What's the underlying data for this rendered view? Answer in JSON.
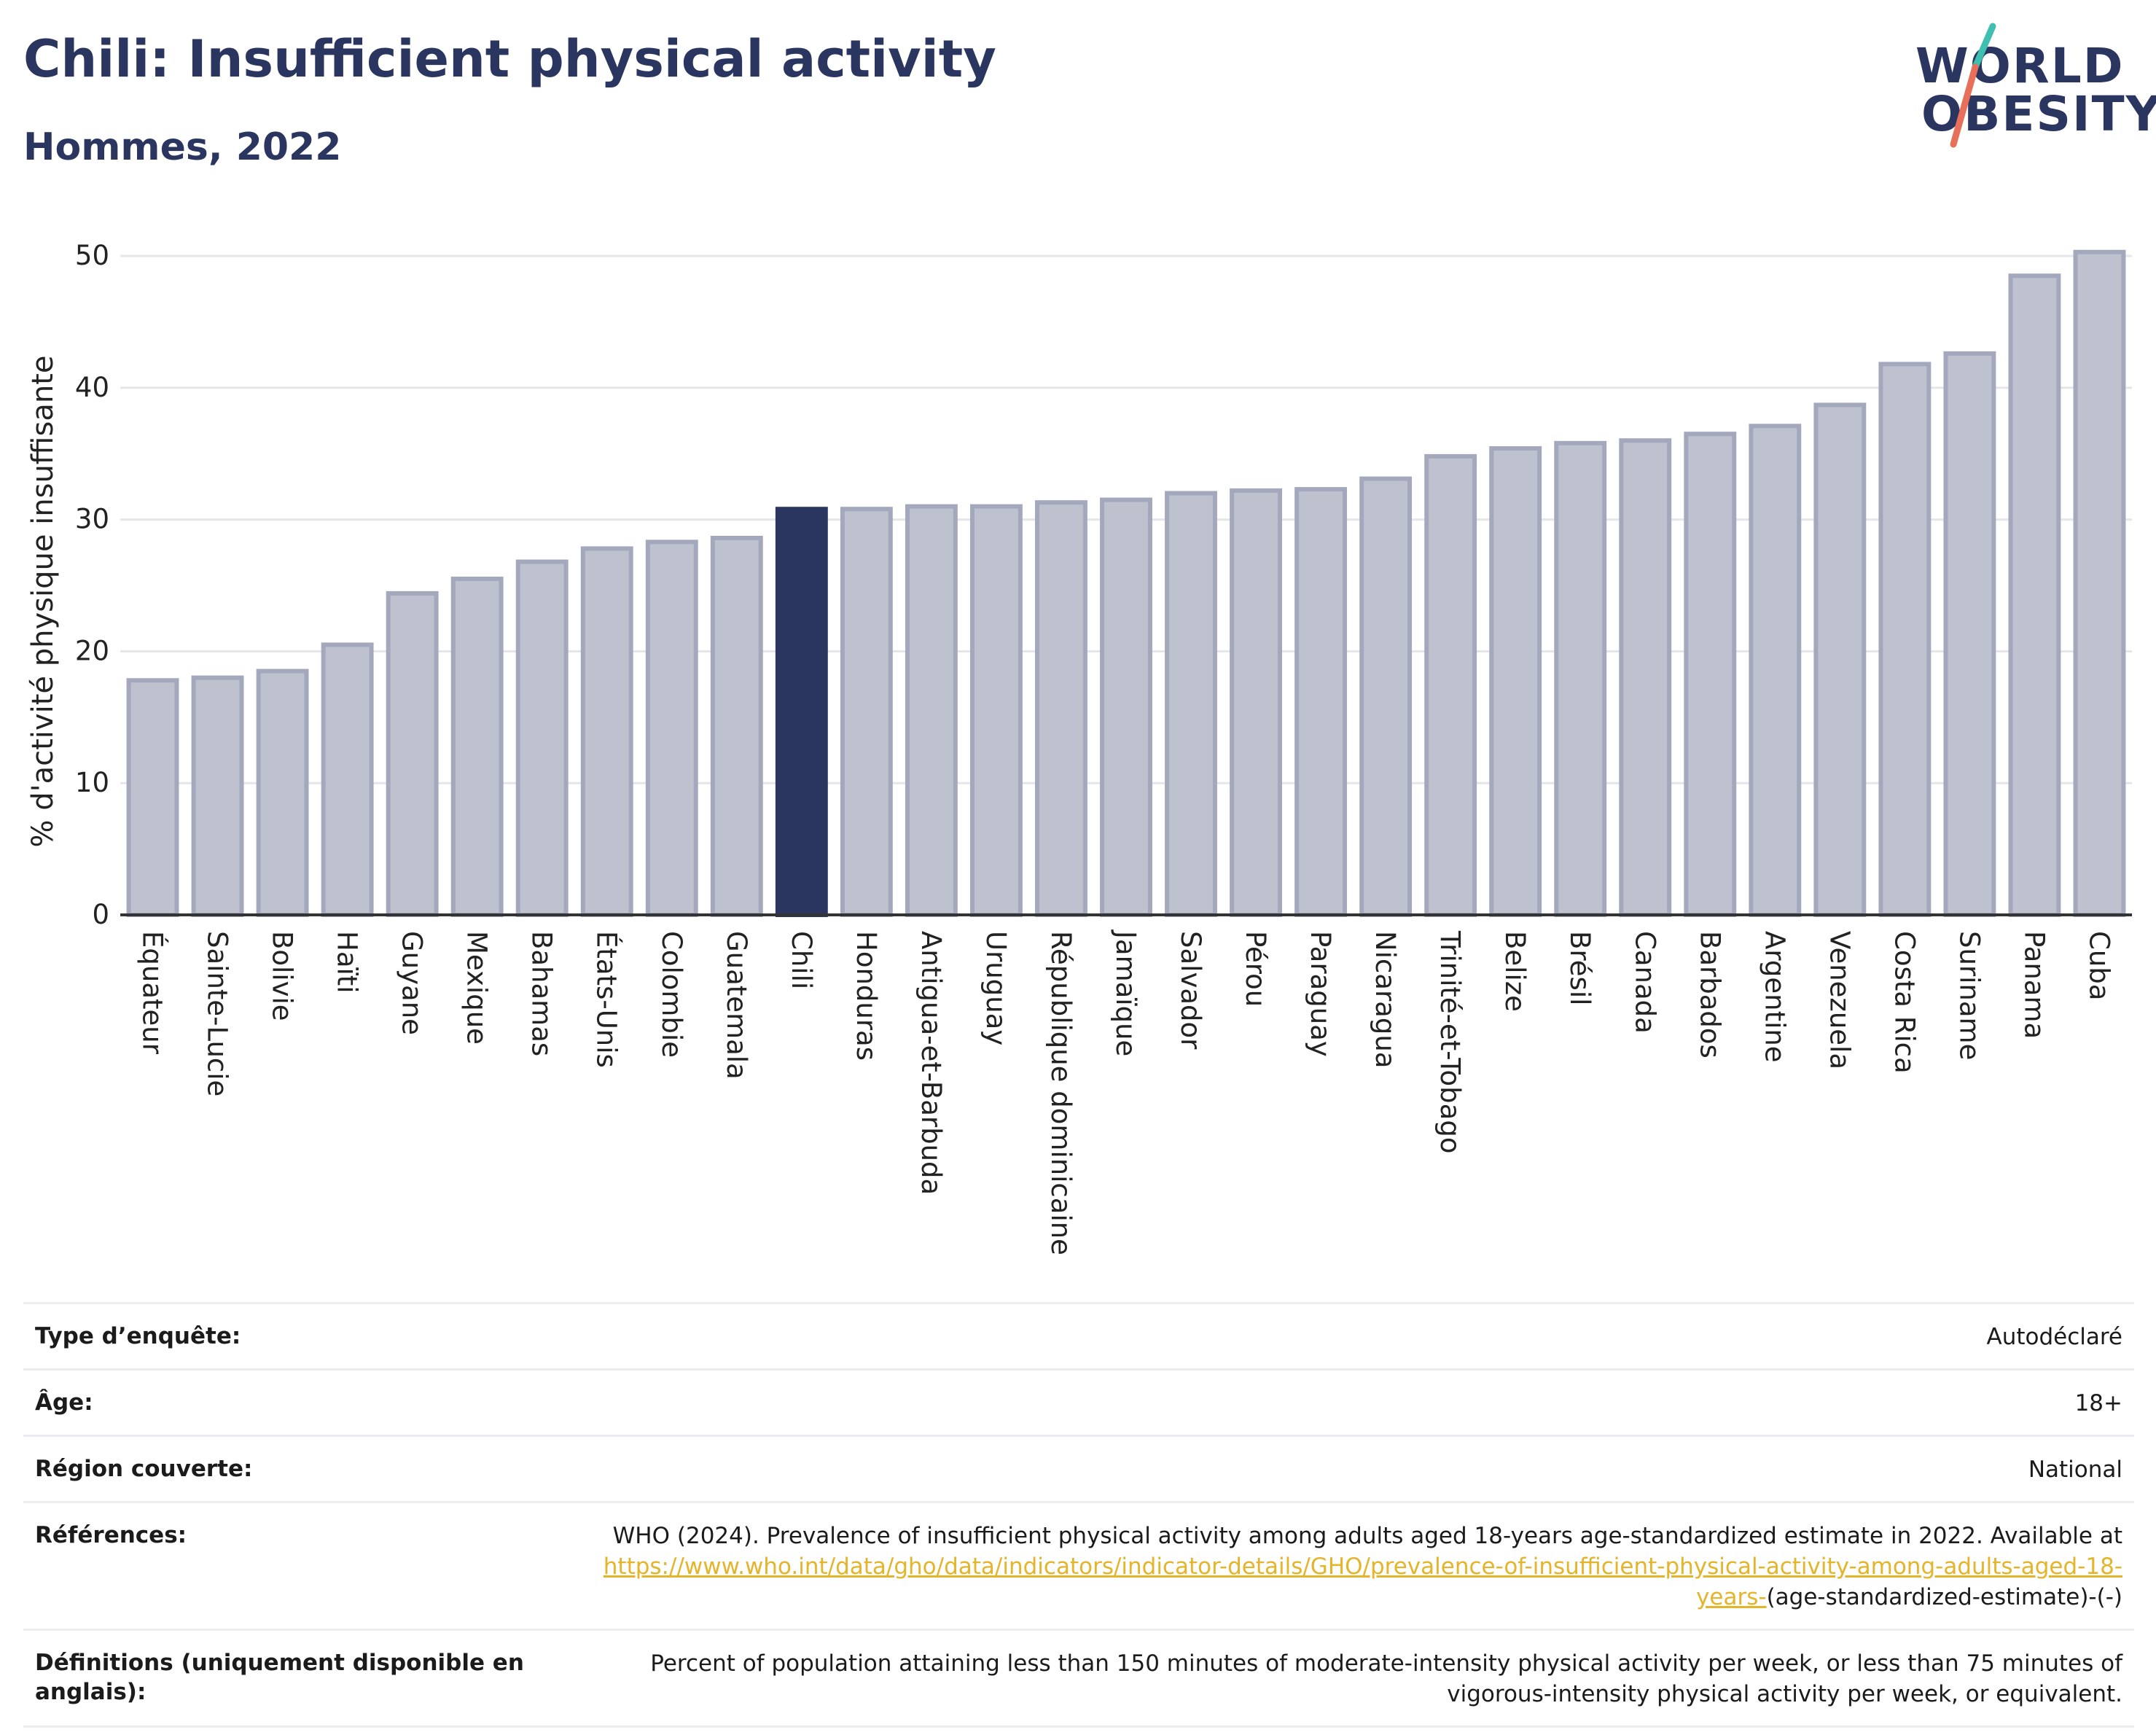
{
  "header": {
    "title": "Chili: Insufficient physical activity",
    "subtitle": "Hommes, 2022"
  },
  "logo": {
    "line1": "WORLD",
    "line2": "OBESITY",
    "primary_color": "#2a3560",
    "accent_teal": "#3fbfb0",
    "accent_coral": "#e8705a"
  },
  "colors": {
    "bar": "#bec1ce",
    "bar_border": "#a3a8bd",
    "highlight": "#2a3560",
    "grid": "#e6e6ea",
    "axis": "#333333"
  },
  "chart_data": {
    "type": "bar",
    "title": "",
    "xlabel": "",
    "ylabel": "% d'activité physique insuffisante",
    "ylim": [
      0,
      52
    ],
    "yticks": [
      0,
      10,
      20,
      30,
      40,
      50
    ],
    "grid": true,
    "highlight_category": "Chili",
    "categories": [
      "Équateur",
      "Sainte-Lucie",
      "Bolivie",
      "Haïti",
      "Guyane",
      "Mexique",
      "Bahamas",
      "États-Unis",
      "Colombie",
      "Guatemala",
      "Chili",
      "Honduras",
      "Antigua-et-Barbuda",
      "Uruguay",
      "République dominicaine",
      "Jamaïque",
      "Salvador",
      "Pérou",
      "Paraguay",
      "Nicaragua",
      "Trinité-et-Tobago",
      "Belize",
      "Brésil",
      "Canada",
      "Barbados",
      "Argentine",
      "Venezuela",
      "Costa Rica",
      "Suriname",
      "Panama",
      "Cuba"
    ],
    "values": [
      17.8,
      18.0,
      18.5,
      20.5,
      24.4,
      25.5,
      26.8,
      27.8,
      28.3,
      28.6,
      30.8,
      30.8,
      31.0,
      31.0,
      31.3,
      31.5,
      32.0,
      32.2,
      32.3,
      33.1,
      34.8,
      35.4,
      35.8,
      36.0,
      36.5,
      37.1,
      38.7,
      41.8,
      42.6,
      48.5,
      50.3
    ]
  },
  "info": {
    "survey_label": "Type d’enquête:",
    "survey_value": "Autodéclaré",
    "age_label": "Âge:",
    "age_value": "18+",
    "region_label": "Région couverte:",
    "region_value": "National",
    "refs_label": "Références:",
    "refs_text": "WHO (2024). Prevalence of insufficient physical activity among adults aged 18-years age-standardized estimate in 2022. Available at",
    "refs_link": "https://www.who.int/data/gho/data/indicators/indicator-details/GHO/prevalence-of-insufficient-physical-activity-among-adults-aged-18-years-",
    "refs_suffix": "(age-standardized-estimate)-(-)",
    "def_label": "Définitions (uniquement disponible en anglais):",
    "def_value": "Percent of population attaining less than 150 minutes of moderate-intensity physical activity per week, or less than 75 minutes of vigorous-intensity physical activity per week, or equivalent."
  }
}
